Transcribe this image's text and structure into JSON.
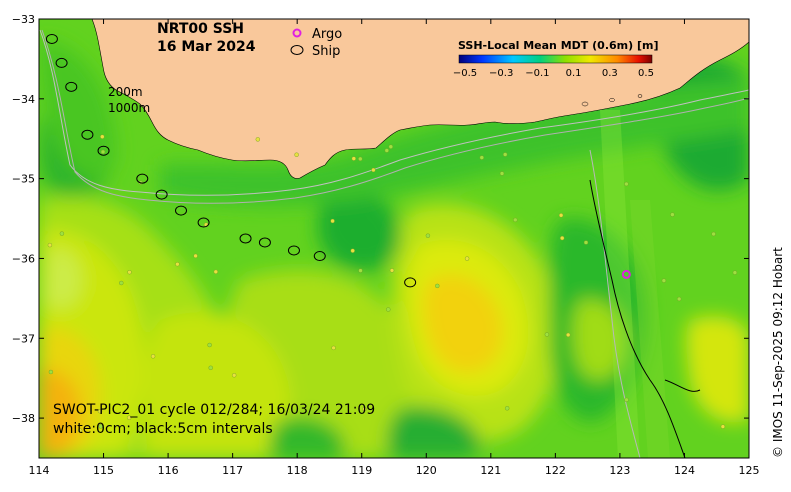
{
  "map": {
    "title_line1": "NRT00 SSH",
    "title_line2": "16 Mar 2024",
    "legend_argo": "Argo",
    "legend_ship": "Ship",
    "colorbar_title": "SSH-Local Mean MDT (0.6m) [m]",
    "colorbar_ticks": [
      "−0.5",
      "−0.3",
      "−0.1",
      "0.1",
      "0.3",
      "0.5"
    ],
    "contour_200m": "200m",
    "contour_1000m": "1000m",
    "caption_line1": "SWOT-PIC2_01 cycle 012/284; 16/03/24 21:09",
    "caption_line2": "white:0cm; black:5cm intervals",
    "credit": "© IMOS 11-Sep-2025 09:12 Hobart",
    "x_ticks": [
      "114",
      "115",
      "116",
      "117",
      "118",
      "119",
      "120",
      "121",
      "122",
      "123",
      "124",
      "125"
    ],
    "y_ticks": [
      "−33",
      "−34",
      "−35",
      "−36",
      "−37",
      "−38"
    ],
    "x_range": [
      114,
      125
    ],
    "y_range": [
      -38.5,
      -33
    ],
    "colors": {
      "land": "#f9c89b",
      "argo": "#e020e0",
      "ocean_base": "#5ccf1e"
    },
    "argo_floats": [
      {
        "lon": 123.1,
        "lat": -36.2
      }
    ],
    "ship_track": [
      {
        "lon": 114.2,
        "lat": -33.25
      },
      {
        "lon": 114.35,
        "lat": -33.55
      },
      {
        "lon": 114.5,
        "lat": -33.85
      },
      {
        "lon": 114.75,
        "lat": -34.45
      },
      {
        "lon": 115.0,
        "lat": -34.65
      },
      {
        "lon": 115.6,
        "lat": -35.0
      },
      {
        "lon": 115.9,
        "lat": -35.2
      },
      {
        "lon": 116.2,
        "lat": -35.4
      },
      {
        "lon": 116.55,
        "lat": -35.55
      },
      {
        "lon": 117.2,
        "lat": -35.75
      },
      {
        "lon": 117.5,
        "lat": -35.8
      },
      {
        "lon": 117.95,
        "lat": -35.9
      },
      {
        "lon": 118.35,
        "lat": -35.97
      },
      {
        "lon": 119.75,
        "lat": -36.3
      }
    ]
  }
}
